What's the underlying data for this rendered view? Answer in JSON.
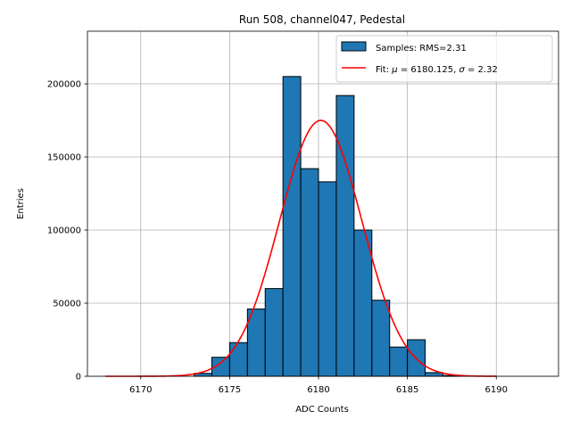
{
  "chart_data": {
    "type": "bar",
    "title": "Run 508, channel047, Pedestal",
    "xlabel": "ADC Counts",
    "ylabel": "Entries",
    "xlim": [
      6167,
      6193.5
    ],
    "ylim": [
      0,
      236000
    ],
    "grid": true,
    "legend_position": "top-right",
    "x_ticks": [
      6170,
      6175,
      6180,
      6185,
      6190
    ],
    "y_ticks": [
      0,
      50000,
      100000,
      150000,
      200000
    ],
    "series": [
      {
        "name": "Samples: RMS=2.31",
        "kind": "histogram",
        "color": "#1f77b4",
        "edge_color": "#000000",
        "bins": [
          {
            "x0": 6173,
            "x1": 6174,
            "value": 2000
          },
          {
            "x0": 6174,
            "x1": 6175,
            "value": 13000
          },
          {
            "x0": 6175,
            "x1": 6176,
            "value": 23000
          },
          {
            "x0": 6176,
            "x1": 6177,
            "value": 46000
          },
          {
            "x0": 6177,
            "x1": 6178,
            "value": 60000
          },
          {
            "x0": 6178,
            "x1": 6179,
            "value": 205000
          },
          {
            "x0": 6179,
            "x1": 6180,
            "value": 142000
          },
          {
            "x0": 6180,
            "x1": 6181,
            "value": 133000
          },
          {
            "x0": 6181,
            "x1": 6182,
            "value": 192000
          },
          {
            "x0": 6182,
            "x1": 6183,
            "value": 100000
          },
          {
            "x0": 6183,
            "x1": 6184,
            "value": 52000
          },
          {
            "x0": 6184,
            "x1": 6185,
            "value": 20000
          },
          {
            "x0": 6185,
            "x1": 6186,
            "value": 25000
          },
          {
            "x0": 6186,
            "x1": 6187,
            "value": 2500
          },
          {
            "x0": 6187,
            "x1": 6188,
            "value": 500
          }
        ]
      },
      {
        "name_prefix": "Fit: ",
        "name_mu": "μ",
        "name_mu_val": " = 6180.125, ",
        "name_sigma": "σ",
        "name_sigma_val": " = 2.32",
        "kind": "gaussian",
        "color": "#ff0000",
        "mu": 6180.125,
        "sigma": 2.32,
        "amplitude": 175000,
        "x_range": [
          6168,
          6190
        ]
      }
    ]
  }
}
